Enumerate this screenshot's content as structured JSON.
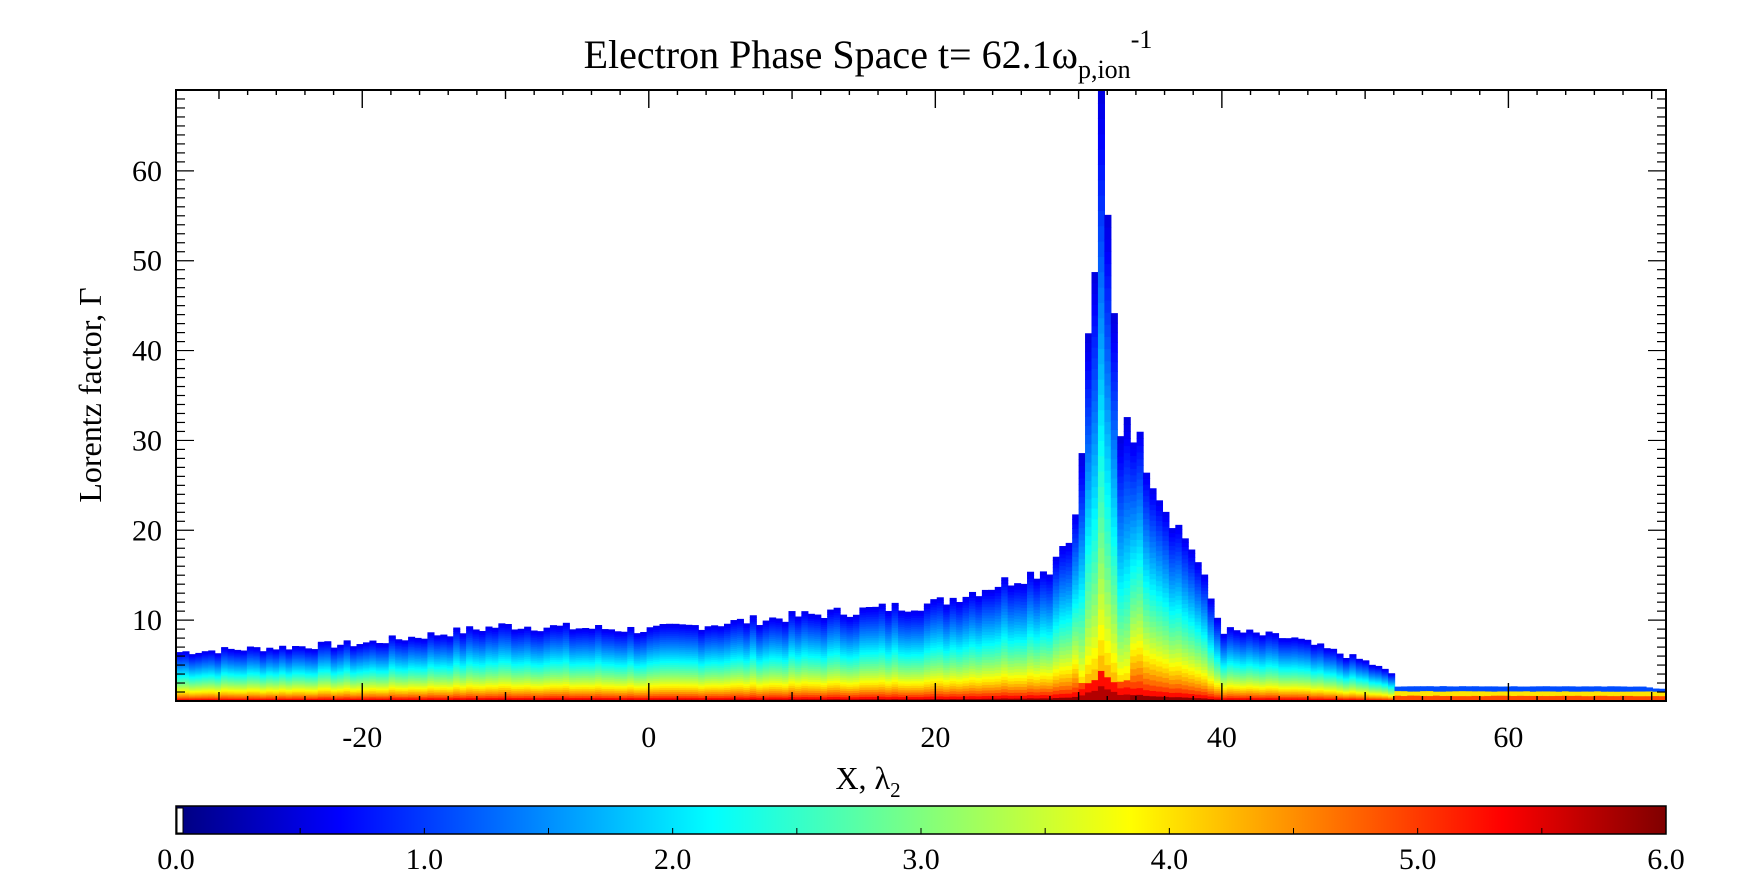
{
  "chart_data": {
    "type": "heatmap",
    "title": {
      "prefix": "Electron Phase Space t=  62.1ω",
      "subscript": "p,ion",
      "superscript": "-1"
    },
    "xlabel": {
      "main": "X, λ",
      "subscript": "2"
    },
    "ylabel": "Lorentz factor, Γ",
    "xlim": [
      -33,
      71
    ],
    "ylim": [
      1,
      69
    ],
    "x_ticks": [
      -20,
      0,
      20,
      40,
      60
    ],
    "x_tick_labels": [
      "-20",
      "0",
      "20",
      "40",
      "60"
    ],
    "y_ticks": [
      10,
      20,
      30,
      40,
      50,
      60
    ],
    "y_tick_labels": [
      "10",
      "20",
      "30",
      "40",
      "50",
      "60"
    ],
    "colorbar": {
      "range": [
        0.0,
        6.0
      ],
      "ticks": [
        0.0,
        1.0,
        2.0,
        3.0,
        4.0,
        5.0,
        6.0
      ],
      "tick_labels": [
        "0.0",
        "1.0",
        "2.0",
        "3.0",
        "4.0",
        "5.0",
        "6.0"
      ],
      "colormap": "jet"
    },
    "distribution": {
      "description_points_x": [
        -33,
        -20,
        -10,
        0,
        10,
        20,
        28,
        30,
        31.5,
        33,
        36,
        38,
        40,
        45,
        50,
        52,
        71
      ],
      "upper_envelope_gamma": [
        6.5,
        7.5,
        9.5,
        9.0,
        10.5,
        12.0,
        16.0,
        22.0,
        69.0,
        35.0,
        23.0,
        18.0,
        9.0,
        8.0,
        5.5,
        4.0,
        2.5
      ]
    },
    "colors": {
      "background": "#ffffff",
      "axis": "#000000"
    }
  }
}
